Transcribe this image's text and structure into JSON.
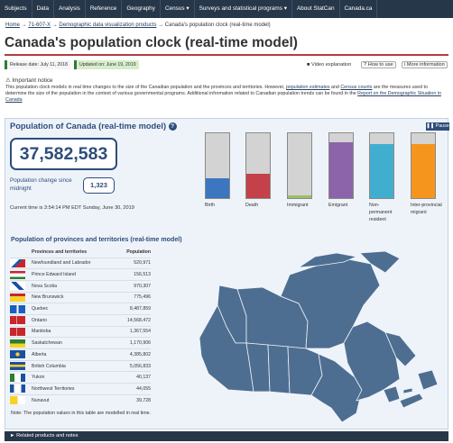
{
  "nav": {
    "items": [
      "Subjects",
      "Data",
      "Analysis",
      "Reference",
      "Geography",
      "Census ▾",
      "Surveys and statistical programs ▾",
      "About StatCan",
      "Canada.ca"
    ]
  },
  "breadcrumb": {
    "home": "Home",
    "sep": "→",
    "item2": "71-607-X",
    "item3": "Demographic data visualization products",
    "current": "Canada's population clock (real-time model)"
  },
  "title": "Canada's population clock (real-time model)",
  "release": {
    "released": "Release date: July 11, 2018",
    "updated": "Updated on: June 19, 2019"
  },
  "toolbar": {
    "video": "Video explanation",
    "howto": "How to use",
    "more": "More information"
  },
  "notice": {
    "heading": "Important notice",
    "text1": "This population clock models in real time changes to the size of the Canadian population and the provinces and territories. However,",
    "link1": "population estimates",
    "text2": "and",
    "link2": "Census counts",
    "text3": "are the measures used to determine the size of the population in the context of various governmental programs. Additional information related to Canadian population trends can be found in the",
    "link3": "Report on the Demographic Situation in Canada"
  },
  "clock": {
    "heading": "Population of Canada (real-time model)",
    "pause": "Pause",
    "population": "37,582,583",
    "change_label": "Population change since midnight",
    "change_value": "1,323",
    "time_text": "Current time is 3:54:14 PM EDT Sunday, June 30, 2019"
  },
  "colors": {
    "birth": "#3d76c0",
    "death": "#c54149",
    "immigrant": "#9cbf62",
    "emigrant": "#8b64a9",
    "nonperm": "#42aecf",
    "interprov": "#f5951e",
    "accent": "#2d4d7c",
    "nav": "#26374a"
  },
  "components": [
    {
      "label": "Birth",
      "level": 0.3,
      "color": "#3d76c0"
    },
    {
      "label": "Death",
      "level": 0.38,
      "color": "#c54149"
    },
    {
      "label": "Immigrant",
      "level": 0.04,
      "color": "#9cbf62"
    },
    {
      "label": "Emigrant",
      "level": 0.86,
      "color": "#8b64a9"
    },
    {
      "label": "Non-permanent resident",
      "level": 0.84,
      "color": "#42aecf"
    },
    {
      "label": "Inter-provincial migrant",
      "level": 0.84,
      "color": "#f5951e"
    }
  ],
  "provinces": {
    "heading": "Population of provinces and territories (real-time model)",
    "col_name": "Provinces and territories",
    "col_pop": "Population",
    "rows": [
      {
        "name": "Newfoundland and Labrador",
        "pop": "520,971"
      },
      {
        "name": "Prince Edward Island",
        "pop": "156,513"
      },
      {
        "name": "Nova Scotia",
        "pop": "970,307"
      },
      {
        "name": "New Brunswick",
        "pop": "775,496"
      },
      {
        "name": "Quebec",
        "pop": "8,487,859"
      },
      {
        "name": "Ontario",
        "pop": "14,568,472"
      },
      {
        "name": "Manitoba",
        "pop": "1,367,554"
      },
      {
        "name": "Saskatchewan",
        "pop": "1,170,906"
      },
      {
        "name": "Alberta",
        "pop": "4,385,802"
      },
      {
        "name": "British Columbia",
        "pop": "5,056,833"
      },
      {
        "name": "Yukon",
        "pop": "40,137"
      },
      {
        "name": "Northwest Territories",
        "pop": "44,055"
      },
      {
        "name": "Nunavut",
        "pop": "39,728"
      }
    ],
    "note": "Note: The population values in this table are modelled in real time."
  },
  "related": "Related products and notes"
}
